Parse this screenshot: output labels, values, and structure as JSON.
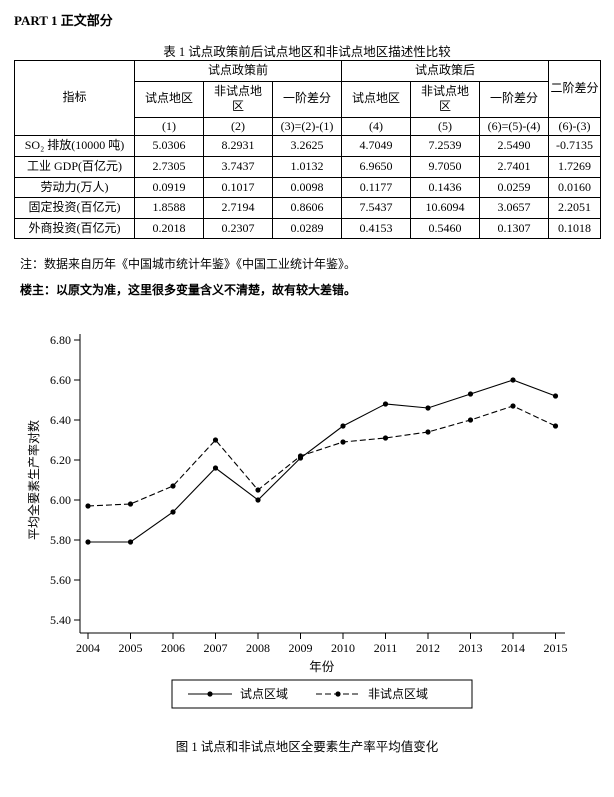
{
  "page": {
    "header": "PART 1 正文部分"
  },
  "table": {
    "title": "表 1 试点政策前后试点地区和非试点地区描述性比较",
    "col_groups": {
      "indicator": "指标",
      "before": "试点政策前",
      "after": "试点政策后",
      "second_diff": "二阶差分"
    },
    "sub_headers": [
      "试点地区",
      "非试点地\n区",
      "一阶差分",
      "试点地区",
      "非试点地\n区",
      "一阶差分"
    ],
    "number_row": [
      "(1)",
      "(2)",
      "(3)=(2)-(1)",
      "(4)",
      "(5)",
      "(6)=(5)-(4)",
      "(6)-(3)"
    ],
    "rows": [
      {
        "label": "SO₂ 排放(10000 吨)",
        "values": [
          "5.0306",
          "8.2931",
          "3.2625",
          "4.7049",
          "7.2539",
          "2.5490",
          "-0.7135"
        ]
      },
      {
        "label": "工业 GDP(百亿元)",
        "values": [
          "2.7305",
          "3.7437",
          "1.0132",
          "6.9650",
          "9.7050",
          "2.7401",
          "1.7269"
        ]
      },
      {
        "label": "劳动力(万人)",
        "values": [
          "0.0919",
          "0.1017",
          "0.0098",
          "0.1177",
          "0.1436",
          "0.0259",
          "0.0160"
        ]
      },
      {
        "label": "固定投资(百亿元)",
        "values": [
          "1.8588",
          "2.7194",
          "0.8606",
          "7.5437",
          "10.6094",
          "3.0657",
          "2.2051"
        ]
      },
      {
        "label": "外商投资(百亿元)",
        "values": [
          "0.2018",
          "0.2307",
          "0.0289",
          "0.4153",
          "0.5460",
          "0.1307",
          "0.1018"
        ]
      }
    ]
  },
  "notes": {
    "source": "注：数据来自历年《中国城市统计年鉴》《中国工业统计年鉴》。",
    "poster": "楼主：以原文为准，这里很多变量含义不清楚，故有较大差错。"
  },
  "chart_data": {
    "type": "line",
    "x": [
      2004,
      2005,
      2006,
      2007,
      2008,
      2009,
      2010,
      2011,
      2012,
      2013,
      2014,
      2015
    ],
    "series": [
      {
        "name": "试点区域",
        "style": "solid",
        "values": [
          5.79,
          5.79,
          5.94,
          6.16,
          6.0,
          6.21,
          6.37,
          6.48,
          6.46,
          6.53,
          6.6,
          6.52
        ]
      },
      {
        "name": "非试点区域",
        "style": "dashed",
        "values": [
          5.97,
          5.98,
          6.07,
          6.3,
          6.05,
          6.22,
          6.29,
          6.31,
          6.34,
          6.4,
          6.47,
          6.37
        ]
      }
    ],
    "title": "",
    "xlabel": "年份",
    "ylabel": "平均全要素生产率对数",
    "ylim": [
      5.4,
      6.8
    ],
    "yticks": [
      5.4,
      5.6,
      5.8,
      6.0,
      6.2,
      6.4,
      6.6,
      6.8
    ],
    "grid": false,
    "legend_position": "bottom",
    "line_color": "#000000"
  },
  "figure": {
    "caption": "图 1 试点和非试点地区全要素生产率平均值变化"
  }
}
